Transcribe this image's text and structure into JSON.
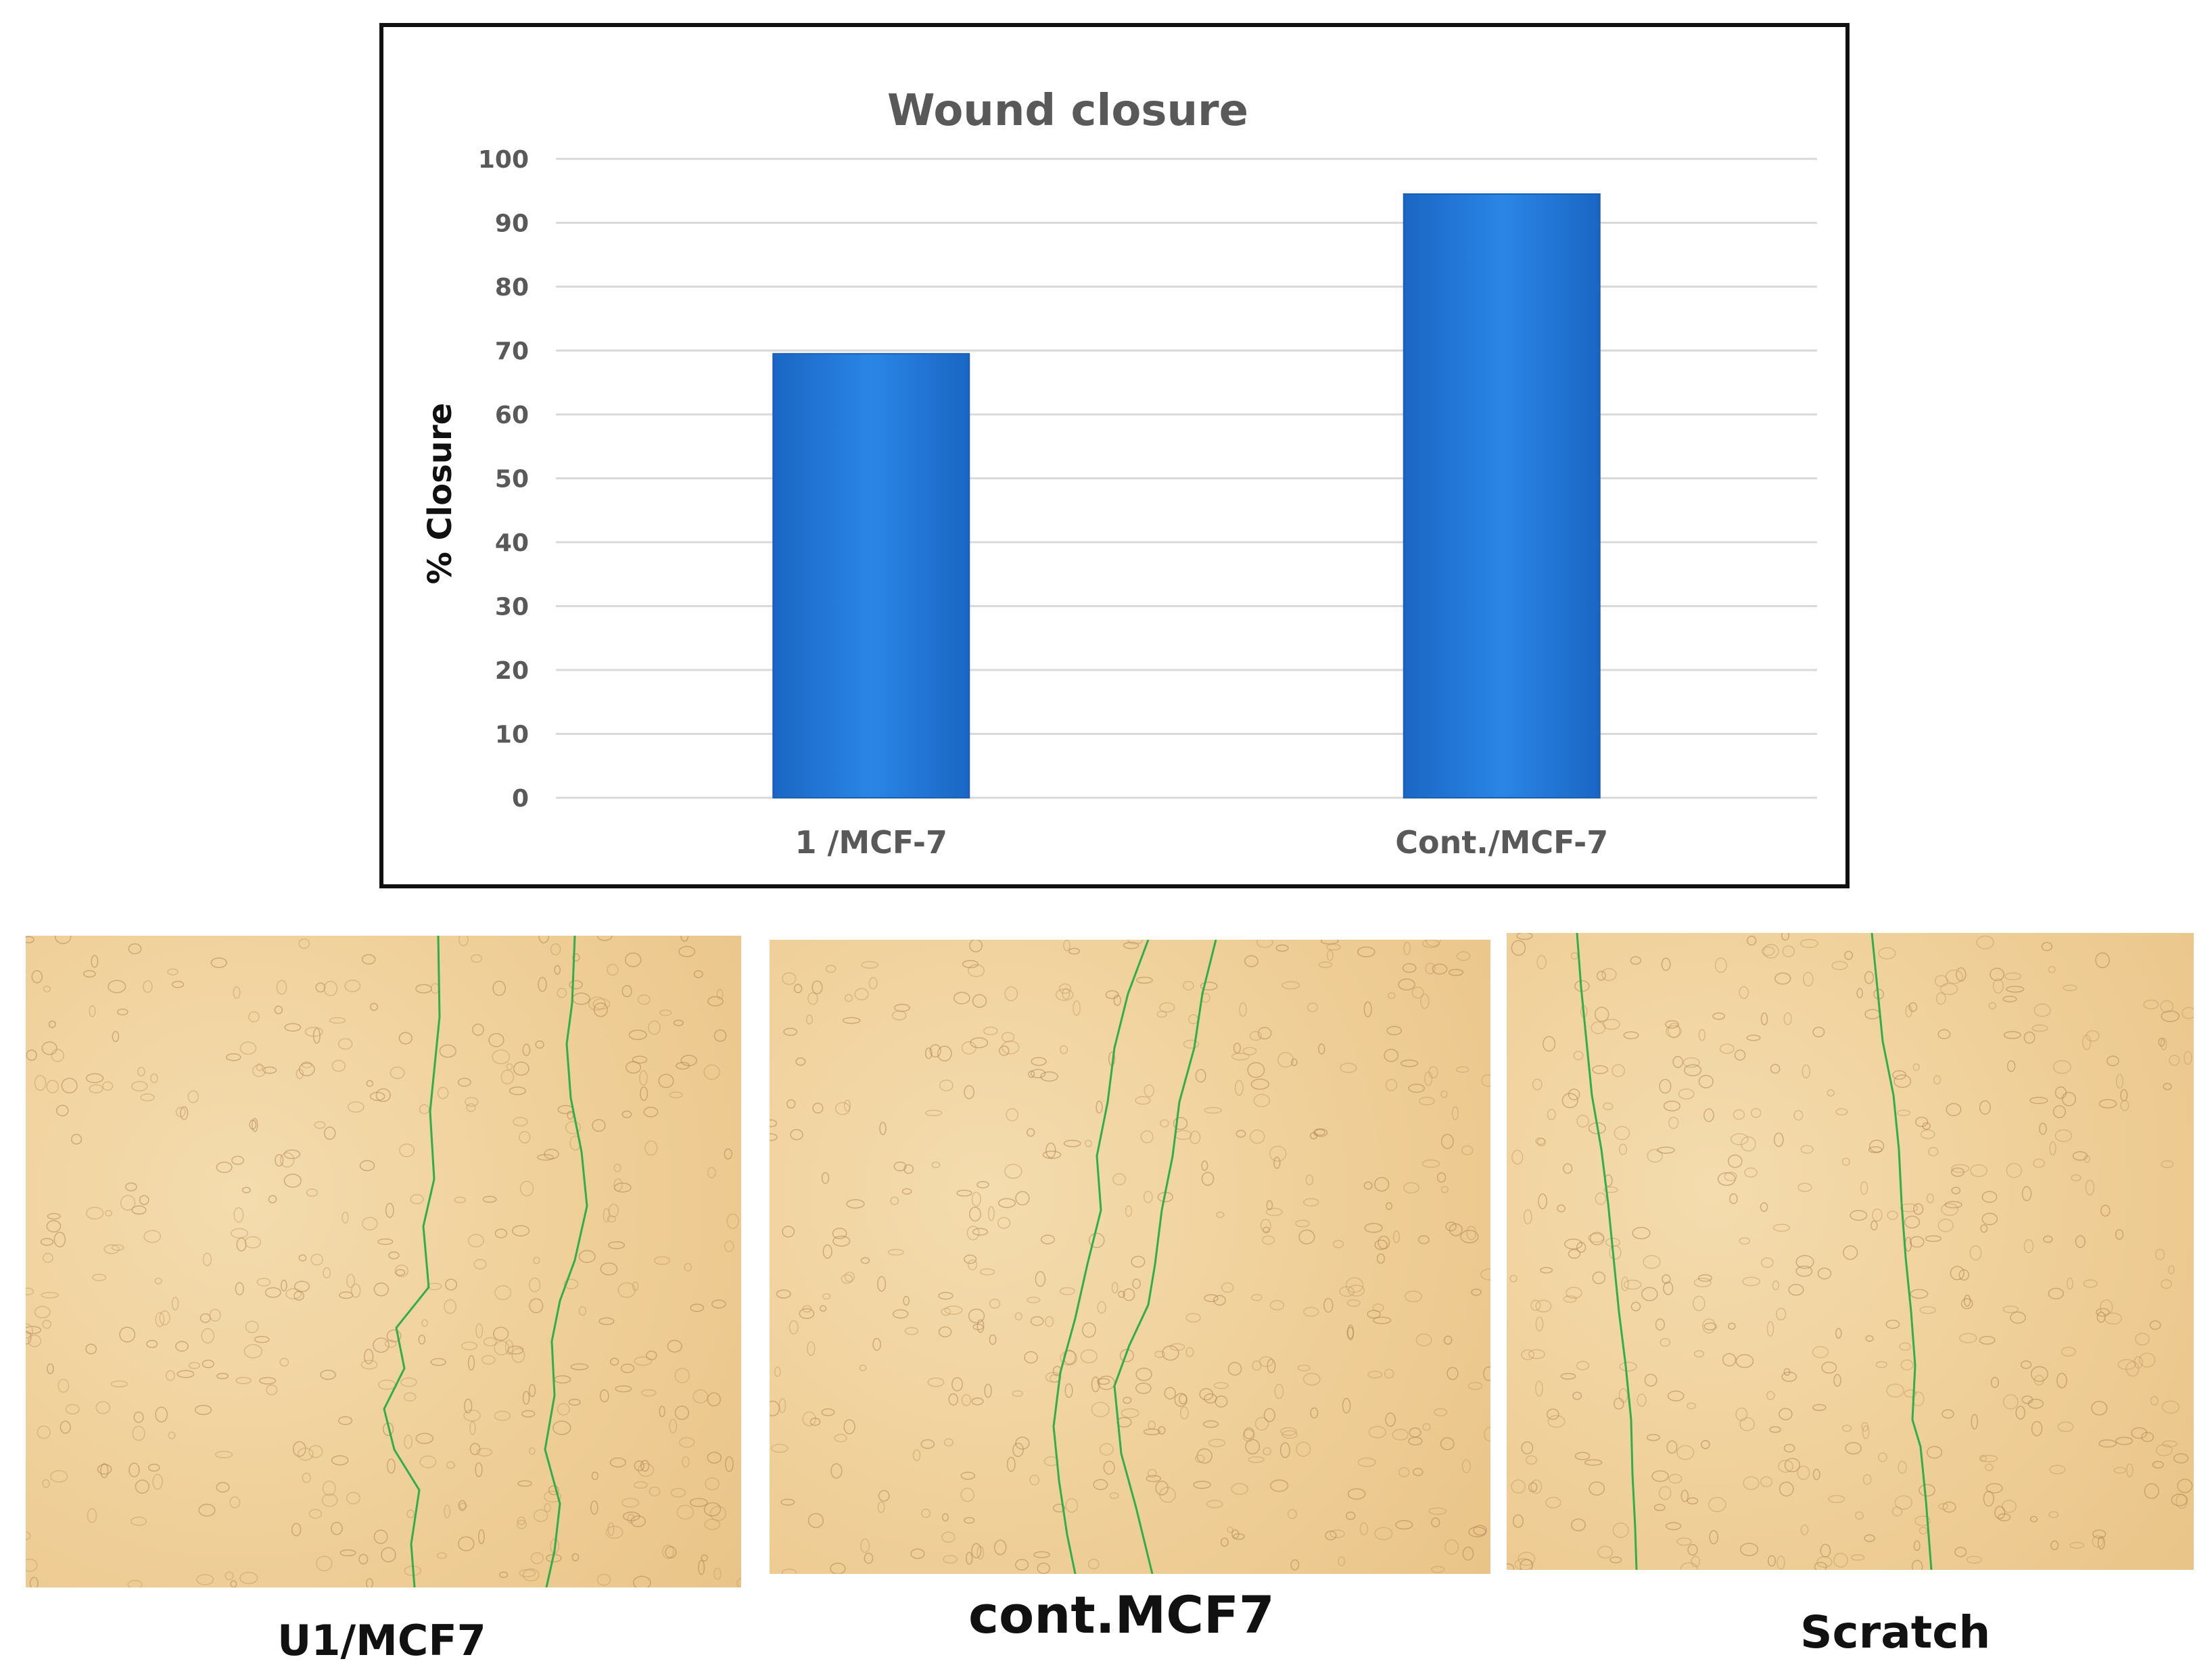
{
  "chart_data": {
    "type": "bar",
    "title": "Wound closure",
    "ylabel": "% Closure",
    "xlabel": "",
    "categories": [
      "1 /MCF-7",
      "Cont./MCF-7"
    ],
    "values": [
      69.5,
      94.5
    ],
    "ylim": [
      0,
      100
    ],
    "yticks": [
      0,
      10,
      20,
      30,
      40,
      50,
      60,
      70,
      80,
      90,
      100
    ],
    "grid": true,
    "bar_color": "#1f77d6"
  },
  "panels": [
    {
      "label": "U1/MCF7",
      "image": "microscopy-wound-image"
    },
    {
      "label": "cont.MCF7",
      "image": "microscopy-wound-image"
    },
    {
      "label": "Scratch",
      "image": "microscopy-wound-image"
    }
  ],
  "colors": {
    "wound_edge": "#2fae4a",
    "culture_background": "#f2d6a4"
  }
}
